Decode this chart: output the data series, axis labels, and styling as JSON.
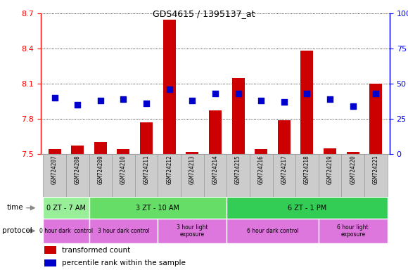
{
  "title": "GDS4615 / 1395137_at",
  "samples": [
    "GSM724207",
    "GSM724208",
    "GSM724209",
    "GSM724210",
    "GSM724211",
    "GSM724212",
    "GSM724213",
    "GSM724214",
    "GSM724215",
    "GSM724216",
    "GSM724217",
    "GSM724218",
    "GSM724219",
    "GSM724220",
    "GSM724221"
  ],
  "transformed_count": [
    7.54,
    7.57,
    7.6,
    7.54,
    7.77,
    8.65,
    7.52,
    7.87,
    8.15,
    7.54,
    7.79,
    8.38,
    7.55,
    7.52,
    8.1
  ],
  "percentile_rank": [
    40,
    35,
    38,
    39,
    36,
    46,
    38,
    43,
    43,
    38,
    37,
    43,
    39,
    34,
    43
  ],
  "ylim_left": [
    7.5,
    8.7
  ],
  "ylim_right": [
    0,
    100
  ],
  "yticks_left": [
    7.5,
    7.8,
    8.1,
    8.4,
    8.7
  ],
  "yticks_right": [
    0,
    25,
    50,
    75,
    100
  ],
  "bar_color": "#cc0000",
  "dot_color": "#0000cc",
  "bar_width": 0.55,
  "dot_size": 30,
  "time_groups": [
    {
      "label": "0 ZT - 7 AM",
      "cols": [
        0,
        1
      ],
      "color": "#99ee99"
    },
    {
      "label": "3 ZT - 10 AM",
      "cols": [
        2,
        3,
        4,
        5,
        6,
        7
      ],
      "color": "#66dd66"
    },
    {
      "label": "6 ZT - 1 PM",
      "cols": [
        8,
        9,
        10,
        11,
        12,
        13,
        14
      ],
      "color": "#33cc55"
    }
  ],
  "protocol_groups": [
    {
      "label": "0 hour dark  control",
      "cols": [
        0,
        1
      ],
      "color": "#dd77dd"
    },
    {
      "label": "3 hour dark control",
      "cols": [
        2,
        3,
        4
      ],
      "color": "#dd77dd"
    },
    {
      "label": "3 hour light\nexposure",
      "cols": [
        5,
        6,
        7
      ],
      "color": "#dd77dd"
    },
    {
      "label": "6 hour dark control",
      "cols": [
        8,
        9,
        10,
        11
      ],
      "color": "#dd77dd"
    },
    {
      "label": "6 hour light\nexposure",
      "cols": [
        12,
        13,
        14
      ],
      "color": "#dd77dd"
    }
  ],
  "legend_red": "transformed count",
  "legend_blue": "percentile rank within the sample",
  "label_bg": "#cccccc",
  "label_border": "#999999"
}
